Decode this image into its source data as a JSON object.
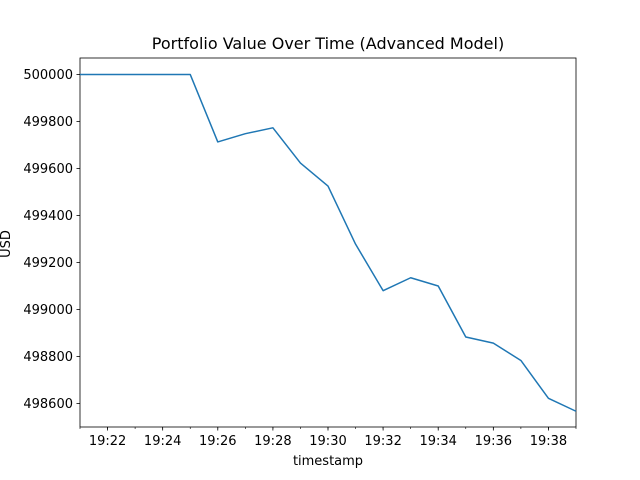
{
  "chart_data": {
    "type": "line",
    "title": "Portfolio Value Over Time (Advanced Model)",
    "xlabel": "timestamp",
    "ylabel": "USD",
    "x_tick_labels": [
      "19:22",
      "19:24",
      "19:26",
      "19:28",
      "19:30",
      "19:32",
      "19:34",
      "19:36",
      "19:38"
    ],
    "y_tick_labels": [
      "500000",
      "499800",
      "499600",
      "499400",
      "499200",
      "499000",
      "498800",
      "498600"
    ],
    "y_ticks": [
      500000,
      499800,
      499600,
      499400,
      499200,
      499000,
      498800,
      498600
    ],
    "xlim": [
      "19:21",
      "19:39"
    ],
    "ylim": [
      498500,
      500070
    ],
    "grid": false,
    "series": [
      {
        "color": "#1f77b4",
        "x": [
          "19:21",
          "19:22",
          "19:23",
          "19:24",
          "19:25",
          "19:26",
          "19:27",
          "19:28",
          "19:29",
          "19:30",
          "19:31",
          "19:32",
          "19:33",
          "19:34",
          "19:35",
          "19:36",
          "19:37",
          "19:38",
          "19:39"
        ],
        "values": [
          500000,
          500000,
          500000,
          500000,
          500000,
          499713,
          499748,
          499773,
          499623,
          499525,
          499278,
          499080,
          499135,
          499100,
          498883,
          498857,
          498783,
          498622,
          498567
        ]
      }
    ]
  }
}
